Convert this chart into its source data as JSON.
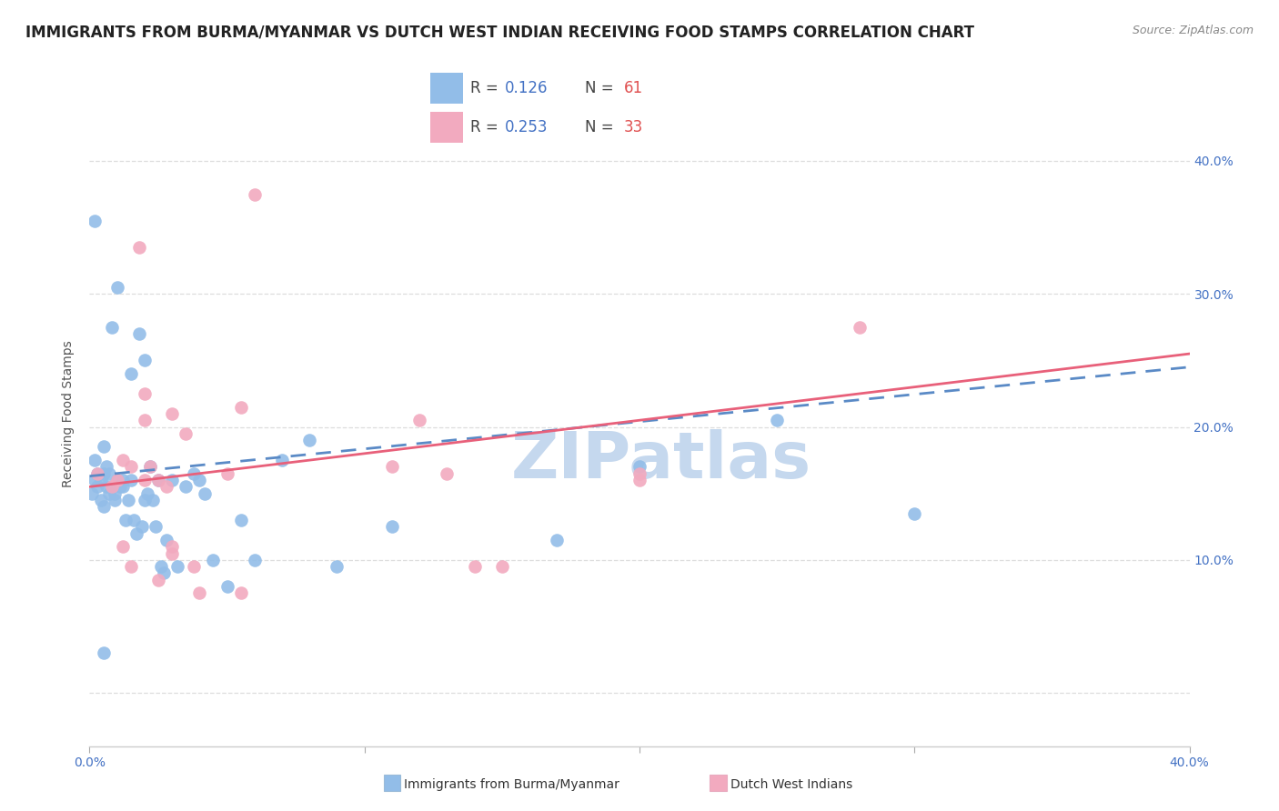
{
  "title": "IMMIGRANTS FROM BURMA/MYANMAR VS DUTCH WEST INDIAN RECEIVING FOOD STAMPS CORRELATION CHART",
  "source": "Source: ZipAtlas.com",
  "ylabel": "Receiving Food Stamps",
  "xlim": [
    0.0,
    0.4
  ],
  "ylim": [
    -0.04,
    0.46
  ],
  "x_ticks": [
    0.0,
    0.1,
    0.2,
    0.3,
    0.4
  ],
  "x_tick_labels": [
    "0.0%",
    "",
    "",
    "",
    "40.0%"
  ],
  "y_ticks": [
    0.0,
    0.1,
    0.2,
    0.3,
    0.4
  ],
  "y_tick_labels_right": [
    "",
    "10.0%",
    "20.0%",
    "30.0%",
    "40.0%"
  ],
  "blue_color": "#92BDE8",
  "pink_color": "#F2AABF",
  "blue_line_color": "#5A8AC6",
  "pink_line_color": "#E8607A",
  "blue_line_style": "--",
  "pink_line_style": "-",
  "legend_R1": "0.126",
  "legend_N1": "61",
  "legend_R2": "0.253",
  "legend_N2": "33",
  "blue_trend_y_start": 0.163,
  "blue_trend_y_end": 0.245,
  "pink_trend_y_start": 0.155,
  "pink_trend_y_end": 0.255,
  "blue_scatter_x": [
    0.001,
    0.002,
    0.002,
    0.002,
    0.003,
    0.003,
    0.004,
    0.004,
    0.005,
    0.005,
    0.005,
    0.006,
    0.006,
    0.007,
    0.007,
    0.008,
    0.008,
    0.009,
    0.009,
    0.01,
    0.01,
    0.011,
    0.012,
    0.012,
    0.013,
    0.014,
    0.015,
    0.015,
    0.016,
    0.017,
    0.018,
    0.019,
    0.02,
    0.02,
    0.021,
    0.022,
    0.023,
    0.024,
    0.025,
    0.026,
    0.027,
    0.028,
    0.03,
    0.032,
    0.035,
    0.038,
    0.04,
    0.042,
    0.045,
    0.05,
    0.055,
    0.06,
    0.07,
    0.08,
    0.09,
    0.11,
    0.17,
    0.2,
    0.25,
    0.3,
    0.005
  ],
  "blue_scatter_y": [
    0.15,
    0.175,
    0.16,
    0.355,
    0.165,
    0.155,
    0.16,
    0.145,
    0.185,
    0.165,
    0.14,
    0.17,
    0.155,
    0.165,
    0.15,
    0.155,
    0.275,
    0.15,
    0.145,
    0.16,
    0.305,
    0.155,
    0.16,
    0.155,
    0.13,
    0.145,
    0.16,
    0.24,
    0.13,
    0.12,
    0.27,
    0.125,
    0.145,
    0.25,
    0.15,
    0.17,
    0.145,
    0.125,
    0.16,
    0.095,
    0.09,
    0.115,
    0.16,
    0.095,
    0.155,
    0.165,
    0.16,
    0.15,
    0.1,
    0.08,
    0.13,
    0.1,
    0.175,
    0.19,
    0.095,
    0.125,
    0.115,
    0.17,
    0.205,
    0.135,
    0.03
  ],
  "pink_scatter_x": [
    0.003,
    0.008,
    0.01,
    0.012,
    0.015,
    0.015,
    0.018,
    0.02,
    0.02,
    0.022,
    0.025,
    0.025,
    0.028,
    0.03,
    0.03,
    0.035,
    0.038,
    0.04,
    0.05,
    0.055,
    0.06,
    0.11,
    0.12,
    0.13,
    0.14,
    0.15,
    0.2,
    0.28,
    0.012,
    0.02,
    0.03,
    0.055,
    0.2
  ],
  "pink_scatter_y": [
    0.165,
    0.155,
    0.16,
    0.175,
    0.17,
    0.095,
    0.335,
    0.16,
    0.225,
    0.17,
    0.16,
    0.085,
    0.155,
    0.21,
    0.105,
    0.195,
    0.095,
    0.075,
    0.165,
    0.075,
    0.375,
    0.17,
    0.205,
    0.165,
    0.095,
    0.095,
    0.16,
    0.275,
    0.11,
    0.205,
    0.11,
    0.215,
    0.165
  ],
  "watermark_text": "ZIPatlas",
  "watermark_color": "#C5D8EE",
  "watermark_fontsize": 52,
  "title_fontsize": 12,
  "tick_fontsize": 10,
  "source_fontsize": 9,
  "grid_color": "#DDDDDD",
  "background_color": "#FFFFFF",
  "bottom_legend_blue_label": "Immigrants from Burma/Myanmar",
  "bottom_legend_pink_label": "Dutch West Indians"
}
